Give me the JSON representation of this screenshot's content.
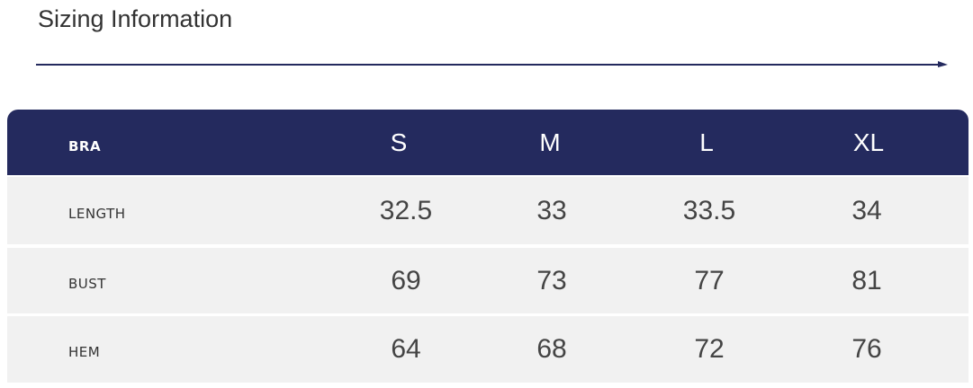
{
  "header": {
    "title": "Sizing Information"
  },
  "table": {
    "columns": [
      "BRA",
      "S",
      "M",
      "L",
      "XL"
    ],
    "rows": [
      [
        "LENGTH",
        32.5,
        33,
        33.5,
        34
      ],
      [
        "BUST",
        69,
        73,
        77,
        81
      ],
      [
        "HEM",
        64,
        68,
        72,
        76
      ]
    ]
  }
}
